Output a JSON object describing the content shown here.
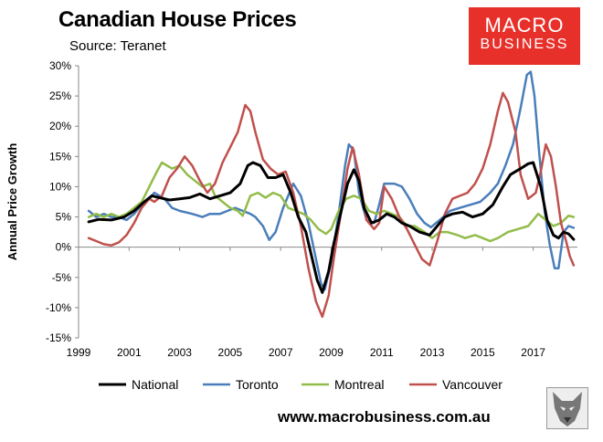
{
  "header": {
    "title": "Canadian House Prices",
    "source": "Source: Teranet"
  },
  "logo": {
    "line1": "MACRO",
    "line2": "BUSINESS",
    "color": "#e8302a"
  },
  "footer": {
    "url": "www.macrobusiness.com.au"
  },
  "chart_data": {
    "type": "line",
    "ylabel": "Annual Price Growth",
    "xlabel": "",
    "xlim": [
      1999.0,
      2018.75
    ],
    "ylim": [
      -15,
      30
    ],
    "xticks": [
      {
        "value": 1999,
        "label": "1999"
      },
      {
        "value": 2001,
        "label": "2001"
      },
      {
        "value": 2003,
        "label": "2003"
      },
      {
        "value": 2005,
        "label": "2005"
      },
      {
        "value": 2007,
        "label": "2007"
      },
      {
        "value": 2009,
        "label": "2009"
      },
      {
        "value": 2011,
        "label": "2011"
      },
      {
        "value": 2013,
        "label": "2013"
      },
      {
        "value": 2015,
        "label": "2015"
      },
      {
        "value": 2017,
        "label": "2017"
      }
    ],
    "yticks": [
      {
        "value": 30,
        "label": "30%"
      },
      {
        "value": 25,
        "label": "25%"
      },
      {
        "value": 20,
        "label": "20%"
      },
      {
        "value": 15,
        "label": "15%"
      },
      {
        "value": 10,
        "label": "10%"
      },
      {
        "value": 5,
        "label": "5%"
      },
      {
        "value": 0,
        "label": "0%"
      },
      {
        "value": -5,
        "label": "-5%"
      },
      {
        "value": -10,
        "label": "-10%"
      },
      {
        "value": -15,
        "label": "-15%"
      }
    ],
    "grid": false,
    "legend_position": "bottom",
    "series": [
      {
        "name": "National",
        "color": "#000000",
        "points": [
          [
            1999.4,
            4.2
          ],
          [
            1999.8,
            4.6
          ],
          [
            2000.3,
            4.5
          ],
          [
            2000.8,
            5.0
          ],
          [
            2001.2,
            6.0
          ],
          [
            2001.6,
            7.5
          ],
          [
            2001.9,
            8.5
          ],
          [
            2002.2,
            8.2
          ],
          [
            2002.6,
            7.8
          ],
          [
            2003.0,
            8.0
          ],
          [
            2003.4,
            8.2
          ],
          [
            2003.8,
            8.8
          ],
          [
            2004.2,
            8.0
          ],
          [
            2004.6,
            8.5
          ],
          [
            2005.0,
            9.0
          ],
          [
            2005.4,
            10.5
          ],
          [
            2005.7,
            13.5
          ],
          [
            2005.9,
            14.0
          ],
          [
            2006.2,
            13.5
          ],
          [
            2006.5,
            11.5
          ],
          [
            2006.8,
            11.5
          ],
          [
            2007.1,
            12.0
          ],
          [
            2007.4,
            9.0
          ],
          [
            2007.7,
            5.0
          ],
          [
            2008.0,
            2.5
          ],
          [
            2008.2,
            -1.0
          ],
          [
            2008.45,
            -5.5
          ],
          [
            2008.65,
            -7.5
          ],
          [
            2008.9,
            -4.0
          ],
          [
            2009.1,
            0.5
          ],
          [
            2009.4,
            6.0
          ],
          [
            2009.65,
            10.5
          ],
          [
            2009.9,
            12.8
          ],
          [
            2010.1,
            11.0
          ],
          [
            2010.3,
            6.5
          ],
          [
            2010.6,
            4.0
          ],
          [
            2010.9,
            4.5
          ],
          [
            2011.2,
            5.5
          ],
          [
            2011.5,
            5.0
          ],
          [
            2011.8,
            4.0
          ],
          [
            2012.1,
            3.5
          ],
          [
            2012.5,
            2.5
          ],
          [
            2012.9,
            2.0
          ],
          [
            2013.2,
            3.5
          ],
          [
            2013.5,
            5.0
          ],
          [
            2013.8,
            5.5
          ],
          [
            2014.2,
            5.8
          ],
          [
            2014.6,
            5.0
          ],
          [
            2015.0,
            5.5
          ],
          [
            2015.4,
            7.0
          ],
          [
            2015.8,
            10.0
          ],
          [
            2016.1,
            12.0
          ],
          [
            2016.5,
            13.0
          ],
          [
            2016.8,
            13.8
          ],
          [
            2017.0,
            14.0
          ],
          [
            2017.3,
            10.0
          ],
          [
            2017.55,
            4.5
          ],
          [
            2017.8,
            2.0
          ],
          [
            2018.0,
            1.5
          ],
          [
            2018.2,
            2.5
          ],
          [
            2018.4,
            2.2
          ],
          [
            2018.6,
            1.3
          ]
        ]
      },
      {
        "name": "Toronto",
        "color": "#4a7ebb",
        "points": [
          [
            1999.4,
            6.0
          ],
          [
            1999.7,
            5.0
          ],
          [
            2000.0,
            5.5
          ],
          [
            2000.3,
            5.0
          ],
          [
            2000.6,
            5.0
          ],
          [
            2000.9,
            4.5
          ],
          [
            2001.2,
            5.5
          ],
          [
            2001.5,
            7.0
          ],
          [
            2001.8,
            8.0
          ],
          [
            2002.0,
            9.0
          ],
          [
            2002.4,
            8.0
          ],
          [
            2002.7,
            6.5
          ],
          [
            2003.0,
            6.0
          ],
          [
            2003.5,
            5.5
          ],
          [
            2003.9,
            5.0
          ],
          [
            2004.2,
            5.5
          ],
          [
            2004.6,
            5.5
          ],
          [
            2004.9,
            6.0
          ],
          [
            2005.2,
            6.5
          ],
          [
            2005.5,
            6.0
          ],
          [
            2005.8,
            5.5
          ],
          [
            2006.0,
            5.0
          ],
          [
            2006.3,
            3.5
          ],
          [
            2006.55,
            1.2
          ],
          [
            2006.8,
            2.5
          ],
          [
            2007.1,
            6.5
          ],
          [
            2007.5,
            10.5
          ],
          [
            2007.8,
            8.5
          ],
          [
            2008.1,
            4.0
          ],
          [
            2008.35,
            -1.0
          ],
          [
            2008.6,
            -6.0
          ],
          [
            2008.75,
            -7.0
          ],
          [
            2009.0,
            -2.5
          ],
          [
            2009.3,
            5.5
          ],
          [
            2009.55,
            13.5
          ],
          [
            2009.7,
            17.0
          ],
          [
            2009.9,
            16.0
          ],
          [
            2010.1,
            9.0
          ],
          [
            2010.4,
            4.5
          ],
          [
            2010.7,
            4.0
          ],
          [
            2010.9,
            7.0
          ],
          [
            2011.1,
            10.5
          ],
          [
            2011.5,
            10.5
          ],
          [
            2011.8,
            10.0
          ],
          [
            2012.1,
            8.0
          ],
          [
            2012.4,
            5.5
          ],
          [
            2012.7,
            4.0
          ],
          [
            2012.95,
            3.3
          ],
          [
            2013.3,
            4.5
          ],
          [
            2013.7,
            6.0
          ],
          [
            2014.1,
            6.5
          ],
          [
            2014.5,
            7.0
          ],
          [
            2014.9,
            7.5
          ],
          [
            2015.3,
            9.0
          ],
          [
            2015.6,
            10.5
          ],
          [
            2015.9,
            13.5
          ],
          [
            2016.2,
            17.0
          ],
          [
            2016.5,
            23.0
          ],
          [
            2016.75,
            28.5
          ],
          [
            2016.9,
            29.0
          ],
          [
            2017.05,
            25.0
          ],
          [
            2017.25,
            15.0
          ],
          [
            2017.45,
            6.0
          ],
          [
            2017.65,
            0.5
          ],
          [
            2017.85,
            -3.5
          ],
          [
            2018.0,
            -3.5
          ],
          [
            2018.2,
            2.5
          ],
          [
            2018.4,
            3.5
          ],
          [
            2018.6,
            3.2
          ]
        ]
      },
      {
        "name": "Montreal",
        "color": "#92bc4a",
        "points": [
          [
            1999.4,
            5.0
          ],
          [
            1999.7,
            5.5
          ],
          [
            2000.0,
            5.0
          ],
          [
            2000.3,
            5.5
          ],
          [
            2000.6,
            5.0
          ],
          [
            2000.9,
            5.5
          ],
          [
            2001.2,
            6.5
          ],
          [
            2001.5,
            7.5
          ],
          [
            2001.8,
            10.0
          ],
          [
            2002.1,
            12.5
          ],
          [
            2002.3,
            14.0
          ],
          [
            2002.7,
            13.0
          ],
          [
            2003.0,
            13.5
          ],
          [
            2003.3,
            12.0
          ],
          [
            2003.6,
            11.0
          ],
          [
            2003.9,
            10.0
          ],
          [
            2004.2,
            10.5
          ],
          [
            2004.4,
            8.5
          ],
          [
            2004.7,
            7.5
          ],
          [
            2005.0,
            6.5
          ],
          [
            2005.3,
            6.0
          ],
          [
            2005.5,
            5.2
          ],
          [
            2005.8,
            8.5
          ],
          [
            2006.1,
            9.0
          ],
          [
            2006.4,
            8.2
          ],
          [
            2006.7,
            9.0
          ],
          [
            2007.0,
            8.5
          ],
          [
            2007.3,
            6.5
          ],
          [
            2007.6,
            6.0
          ],
          [
            2007.9,
            5.5
          ],
          [
            2008.2,
            4.5
          ],
          [
            2008.5,
            3.0
          ],
          [
            2008.8,
            2.2
          ],
          [
            2009.0,
            3.0
          ],
          [
            2009.3,
            6.0
          ],
          [
            2009.6,
            8.0
          ],
          [
            2009.9,
            8.5
          ],
          [
            2010.2,
            8.0
          ],
          [
            2010.5,
            6.0
          ],
          [
            2010.8,
            5.5
          ],
          [
            2011.1,
            6.0
          ],
          [
            2011.4,
            5.5
          ],
          [
            2011.7,
            5.0
          ],
          [
            2012.0,
            3.5
          ],
          [
            2012.3,
            3.5
          ],
          [
            2012.7,
            2.5
          ],
          [
            2013.0,
            1.5
          ],
          [
            2013.3,
            2.5
          ],
          [
            2013.6,
            2.5
          ],
          [
            2014.0,
            2.0
          ],
          [
            2014.3,
            1.5
          ],
          [
            2014.7,
            2.0
          ],
          [
            2015.0,
            1.5
          ],
          [
            2015.3,
            1.0
          ],
          [
            2015.6,
            1.5
          ],
          [
            2016.0,
            2.5
          ],
          [
            2016.4,
            3.0
          ],
          [
            2016.8,
            3.5
          ],
          [
            2017.2,
            5.5
          ],
          [
            2017.5,
            4.5
          ],
          [
            2017.8,
            3.5
          ],
          [
            2018.1,
            4.0
          ],
          [
            2018.4,
            5.2
          ],
          [
            2018.6,
            5.0
          ]
        ]
      },
      {
        "name": "Vancouver",
        "color": "#c0504d",
        "points": [
          [
            1999.4,
            1.5
          ],
          [
            1999.7,
            1.0
          ],
          [
            2000.0,
            0.5
          ],
          [
            2000.3,
            0.3
          ],
          [
            2000.6,
            0.8
          ],
          [
            2000.9,
            2.0
          ],
          [
            2001.2,
            4.0
          ],
          [
            2001.5,
            6.5
          ],
          [
            2001.8,
            8.0
          ],
          [
            2002.0,
            7.5
          ],
          [
            2002.3,
            8.5
          ],
          [
            2002.6,
            11.5
          ],
          [
            2002.9,
            13.0
          ],
          [
            2003.2,
            15.0
          ],
          [
            2003.5,
            13.5
          ],
          [
            2003.8,
            11.0
          ],
          [
            2004.1,
            9.0
          ],
          [
            2004.4,
            10.5
          ],
          [
            2004.7,
            14.0
          ],
          [
            2005.0,
            16.5
          ],
          [
            2005.3,
            19.0
          ],
          [
            2005.6,
            23.5
          ],
          [
            2005.8,
            22.5
          ],
          [
            2006.0,
            19.0
          ],
          [
            2006.3,
            14.5
          ],
          [
            2006.6,
            13.0
          ],
          [
            2006.9,
            12.0
          ],
          [
            2007.2,
            12.5
          ],
          [
            2007.5,
            9.0
          ],
          [
            2007.8,
            3.5
          ],
          [
            2008.1,
            -3.5
          ],
          [
            2008.4,
            -9.0
          ],
          [
            2008.65,
            -11.5
          ],
          [
            2008.9,
            -8.0
          ],
          [
            2009.1,
            -2.0
          ],
          [
            2009.4,
            6.0
          ],
          [
            2009.65,
            13.0
          ],
          [
            2009.85,
            16.5
          ],
          [
            2010.1,
            12.0
          ],
          [
            2010.4,
            4.5
          ],
          [
            2010.7,
            3.0
          ],
          [
            2010.9,
            4.0
          ],
          [
            2011.1,
            10.0
          ],
          [
            2011.4,
            8.0
          ],
          [
            2011.7,
            5.0
          ],
          [
            2012.0,
            3.0
          ],
          [
            2012.3,
            0.5
          ],
          [
            2012.6,
            -2.0
          ],
          [
            2012.9,
            -3.0
          ],
          [
            2013.2,
            1.0
          ],
          [
            2013.5,
            5.5
          ],
          [
            2013.8,
            8.0
          ],
          [
            2014.1,
            8.5
          ],
          [
            2014.4,
            9.0
          ],
          [
            2014.7,
            10.5
          ],
          [
            2015.0,
            13.0
          ],
          [
            2015.3,
            17.0
          ],
          [
            2015.6,
            22.5
          ],
          [
            2015.8,
            25.5
          ],
          [
            2016.0,
            24.0
          ],
          [
            2016.3,
            19.0
          ],
          [
            2016.5,
            12.0
          ],
          [
            2016.8,
            8.0
          ],
          [
            2017.1,
            9.0
          ],
          [
            2017.3,
            12.5
          ],
          [
            2017.5,
            17.0
          ],
          [
            2017.7,
            15.0
          ],
          [
            2017.9,
            10.0
          ],
          [
            2018.1,
            4.0
          ],
          [
            2018.3,
            1.0
          ],
          [
            2018.45,
            -1.5
          ],
          [
            2018.6,
            -3.0
          ]
        ]
      }
    ]
  }
}
